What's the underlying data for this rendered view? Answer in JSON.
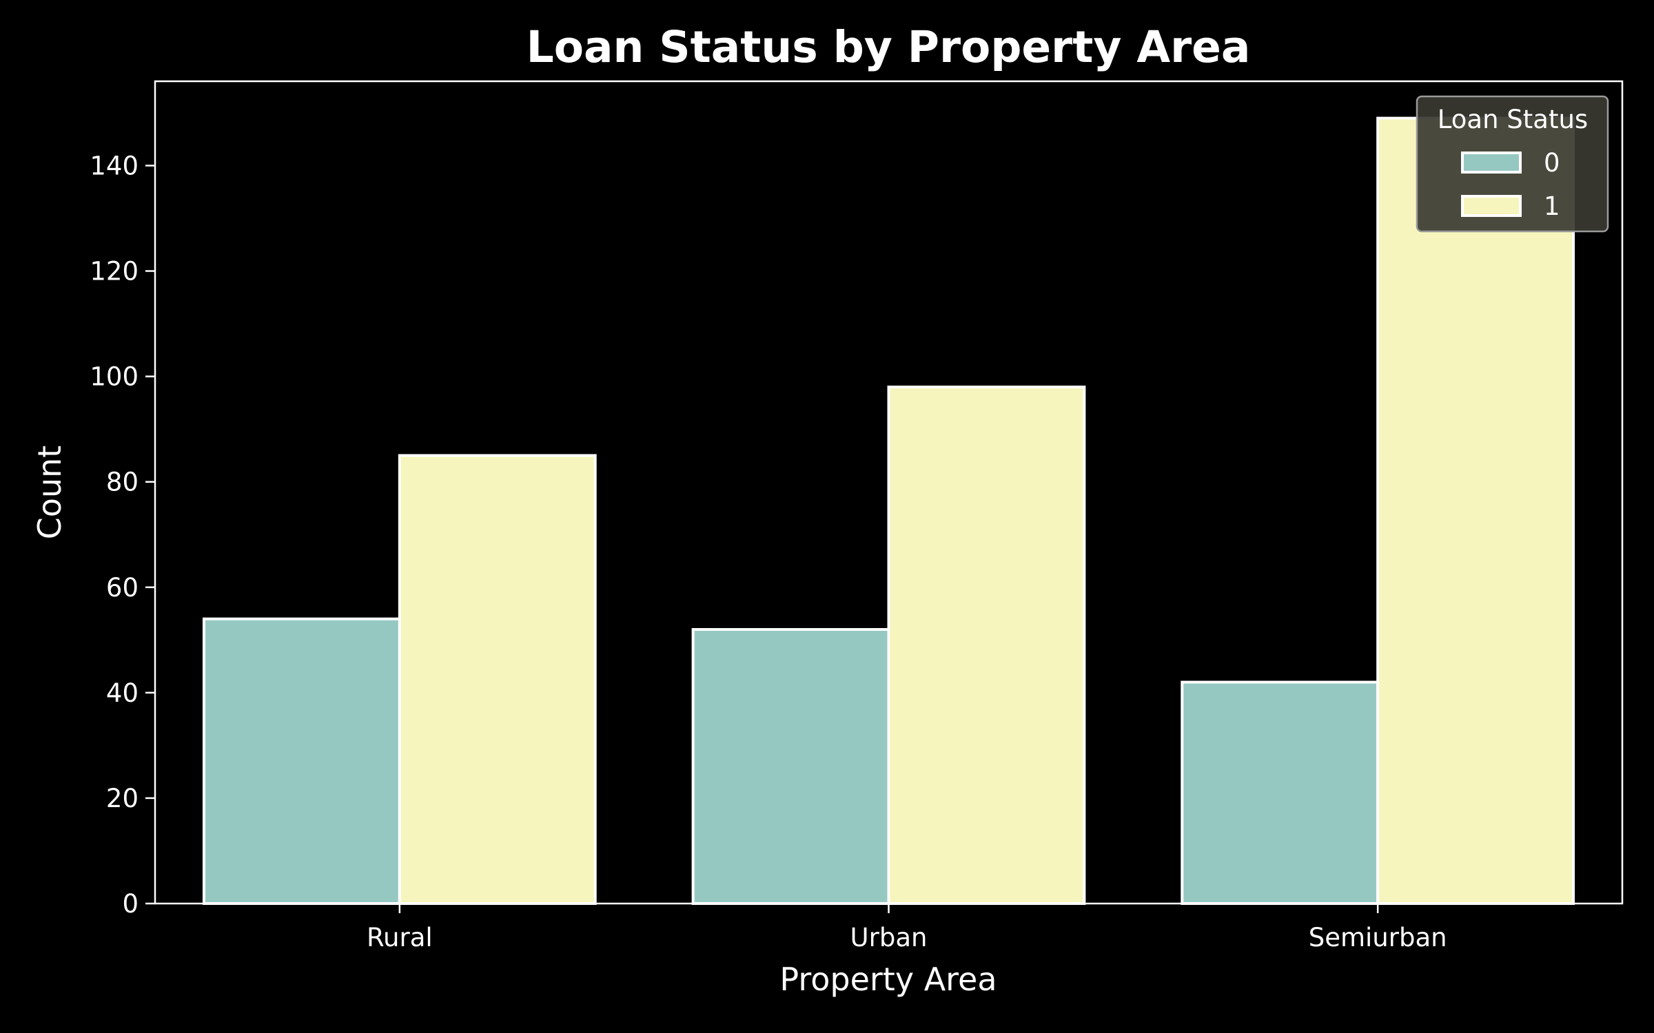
{
  "chart_data": {
    "type": "bar",
    "title": "Loan Status by Property Area",
    "xlabel": "Property Area",
    "ylabel": "Count",
    "categories": [
      "Rural",
      "Urban",
      "Semiurban"
    ],
    "series": [
      {
        "name": "0",
        "values": [
          54,
          52,
          42
        ],
        "color": "#96c8c2"
      },
      {
        "name": "1",
        "values": [
          85,
          98,
          149
        ],
        "color": "#f5f5bd"
      }
    ],
    "ylim": [
      0,
      156
    ],
    "yticks": [
      0,
      20,
      40,
      60,
      80,
      100,
      120,
      140
    ],
    "legend": {
      "title": "Loan Status",
      "placement": "top-right"
    },
    "grid": false,
    "colors": {
      "background": "#000000",
      "axes": "#ffffff",
      "bar_edge": "#ffffff"
    }
  }
}
